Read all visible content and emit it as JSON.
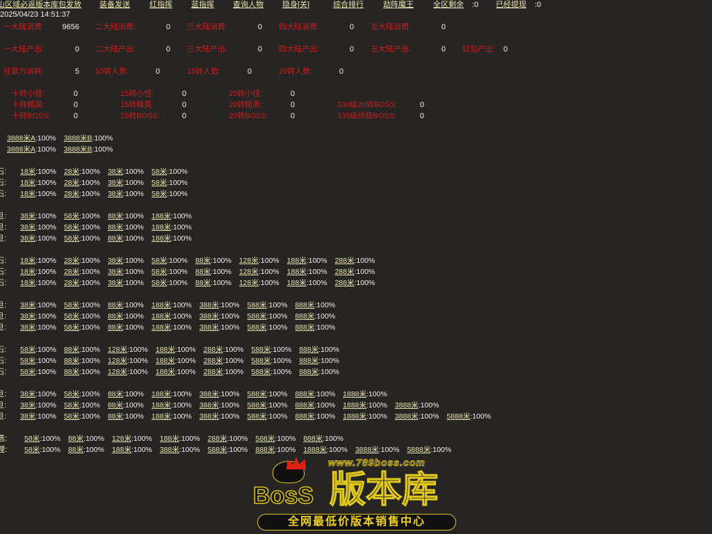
{
  "nav": [
    {
      "label": "山区域必返版本库包发放"
    },
    {
      "label": "装备发送"
    },
    {
      "label": "红指挥"
    },
    {
      "label": "蓝指挥"
    },
    {
      "label": "查询人物"
    },
    {
      "label": "隐身[关]"
    },
    {
      "label": "综合排行"
    },
    {
      "label": "劫阵魔王"
    },
    {
      "label": "全区剩余",
      "value": ":0"
    },
    {
      "label": "已经提现",
      "value": ":0"
    }
  ],
  "datetime": "2025/04/23 14:51:37",
  "stats": [
    [
      {
        "label": "一大陆消费:",
        "value": "9656"
      },
      {
        "label": "二大陆消费:",
        "value": "0"
      },
      {
        "label": "三大陆消费:",
        "value": "0"
      },
      {
        "label": "四大陆消费:",
        "value": "0"
      },
      {
        "label": "五大陆消费:",
        "value": "0"
      }
    ],
    [
      {
        "label": "一大陆产出:",
        "value": "0"
      },
      {
        "label": "二大陆产出:",
        "value": "0"
      },
      {
        "label": "三大陆产出:",
        "value": "0"
      },
      {
        "label": "四大陆产出:",
        "value": "0"
      },
      {
        "label": "五大陆产出:",
        "value": "0"
      },
      {
        "label": "红包产出:",
        "value": "0"
      }
    ],
    [
      {
        "label": "狂暴力消耗:",
        "value": "5"
      },
      {
        "label": "10转人数:",
        "value": "0"
      },
      {
        "label": "15转人数:",
        "value": "0"
      },
      {
        "label": "20转人数:",
        "value": "0"
      }
    ]
  ],
  "monsters": [
    [
      {
        "label": "十转小怪:",
        "value": "0"
      },
      {
        "label": "15转小怪:",
        "value": "0"
      },
      {
        "label": "20转小怪:",
        "value": "0"
      }
    ],
    [
      {
        "label": "十转精英:",
        "value": "0"
      },
      {
        "label": "15转精英:",
        "value": "0"
      },
      {
        "label": "20转精英:",
        "value": "0"
      },
      {
        "label": "330级20转BOSS:",
        "value": "0"
      }
    ],
    [
      {
        "label": "十转BOSS:",
        "value": "0"
      },
      {
        "label": "15转BOSS:",
        "value": "0"
      },
      {
        "label": "20转BOSS:",
        "value": "0"
      },
      {
        "label": "335级终极BOSS:",
        "value": "0"
      }
    ]
  ],
  "rate_value": ":100%",
  "groups": [
    {
      "rows": [
        {
          "label": "",
          "items": [
            "3888米A",
            "3888米B"
          ]
        },
        {
          "label": "",
          "items": [
            "3888米A",
            "3888米B"
          ]
        }
      ]
    },
    {
      "rows": [
        {
          "label": "石:",
          "items": [
            "18米",
            "28米",
            "38米",
            "58米"
          ]
        },
        {
          "label": "石:",
          "items": [
            "18米",
            "28米",
            "38米",
            "58米"
          ]
        },
        {
          "label": "石:",
          "items": [
            "18米",
            "28米",
            "38米",
            "58米"
          ]
        }
      ]
    },
    {
      "rows": [
        {
          "label": "旦:",
          "items": [
            "38米",
            "58米",
            "88米",
            "188米"
          ]
        },
        {
          "label": "旦:",
          "items": [
            "38米",
            "58米",
            "88米",
            "188米"
          ]
        },
        {
          "label": "旦:",
          "items": [
            "38米",
            "58米",
            "88米",
            "188米"
          ]
        }
      ]
    },
    {
      "rows": [
        {
          "label": "石:",
          "items": [
            "18米",
            "28米",
            "38米",
            "58米",
            "88米",
            "128米",
            "188米",
            "288米"
          ]
        },
        {
          "label": "石:",
          "items": [
            "18米",
            "28米",
            "38米",
            "58米",
            "88米",
            "128米",
            "188米",
            "288米"
          ]
        },
        {
          "label": "石:",
          "items": [
            "18米",
            "28米",
            "38米",
            "58米",
            "88米",
            "128米",
            "188米",
            "288米"
          ]
        }
      ]
    },
    {
      "rows": [
        {
          "label": "旦:",
          "items": [
            "38米",
            "58米",
            "88米",
            "188米",
            "388米",
            "588米",
            "888米"
          ]
        },
        {
          "label": "旦:",
          "items": [
            "38米",
            "58米",
            "88米",
            "188米",
            "388米",
            "588米",
            "888米"
          ]
        },
        {
          "label": "旦:",
          "items": [
            "38米",
            "58米",
            "88米",
            "188米",
            "388米",
            "588米",
            "888米"
          ]
        }
      ]
    },
    {
      "rows": [
        {
          "label": "石:",
          "items": [
            "58米",
            "88米",
            "128米",
            "188米",
            "288米",
            "588米",
            "888米"
          ]
        },
        {
          "label": "石:",
          "items": [
            "58米",
            "88米",
            "128米",
            "188米",
            "288米",
            "588米",
            "888米"
          ]
        },
        {
          "label": "石:",
          "items": [
            "58米",
            "88米",
            "128米",
            "188米",
            "288米",
            "588米",
            "888米"
          ]
        }
      ]
    },
    {
      "rows": [
        {
          "label": "旦:",
          "items": [
            "38米",
            "58米",
            "88米",
            "188米",
            "388米",
            "588米",
            "888米",
            "1888米"
          ]
        },
        {
          "label": "旦:",
          "items": [
            "38米",
            "58米",
            "88米",
            "188米",
            "388米",
            "588米",
            "888米",
            "1888米",
            "3888米"
          ]
        },
        {
          "label": "旦:",
          "items": [
            "38米",
            "58米",
            "88米",
            "188米",
            "388米",
            "588米",
            "888米",
            "1888米",
            "3888米",
            "5888米"
          ]
        }
      ]
    },
    {
      "rows": [
        {
          "label": "选:",
          "items": [
            "58米",
            "88米",
            "128米",
            "188米",
            "288米",
            "588米",
            "888米"
          ]
        },
        {
          "label": "理:",
          "items": [
            "58米",
            "88米",
            "188米",
            "388米",
            "588米",
            "888米",
            "1888米",
            "3888米",
            "5888米"
          ]
        }
      ]
    }
  ],
  "watermark": {
    "url": "www.789boss.com",
    "brand": "BosS",
    "title": "版本库",
    "slogan": "全网最低价版本销售中心"
  },
  "colors": {
    "background": "#262524",
    "link": "#e8e4b0",
    "stat_label": "#c81e1e",
    "value": "#f4f4f4",
    "logo_outline": "#e0c820",
    "crown": "#e02010"
  }
}
